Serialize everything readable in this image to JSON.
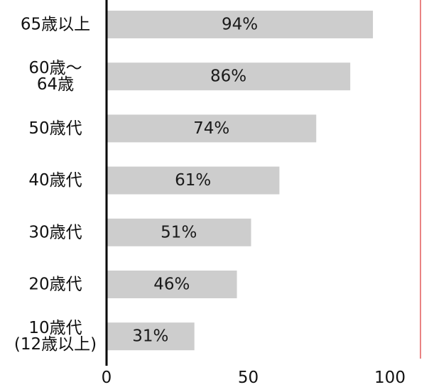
{
  "chart_data": {
    "type": "bar",
    "orientation": "horizontal",
    "categories": [
      [
        "65歳以上"
      ],
      [
        "60歳～",
        "64歳"
      ],
      [
        "50歳代"
      ],
      [
        "40歳代"
      ],
      [
        "30歳代"
      ],
      [
        "20歳代"
      ],
      [
        "10歳代",
        "(12歳以上)"
      ]
    ],
    "values": [
      94,
      86,
      74,
      61,
      51,
      46,
      31
    ],
    "value_labels": [
      "94%",
      "86%",
      "74%",
      "61%",
      "51%",
      "46%",
      "31%"
    ],
    "xticks": [
      0,
      50,
      100
    ],
    "xlim": [
      0,
      100
    ],
    "title": "",
    "xlabel": "",
    "ylabel": "",
    "grid": false,
    "colors": {
      "bar": "#cdcdcd",
      "axis": "#000000",
      "right_border": "#e25a5a"
    }
  }
}
